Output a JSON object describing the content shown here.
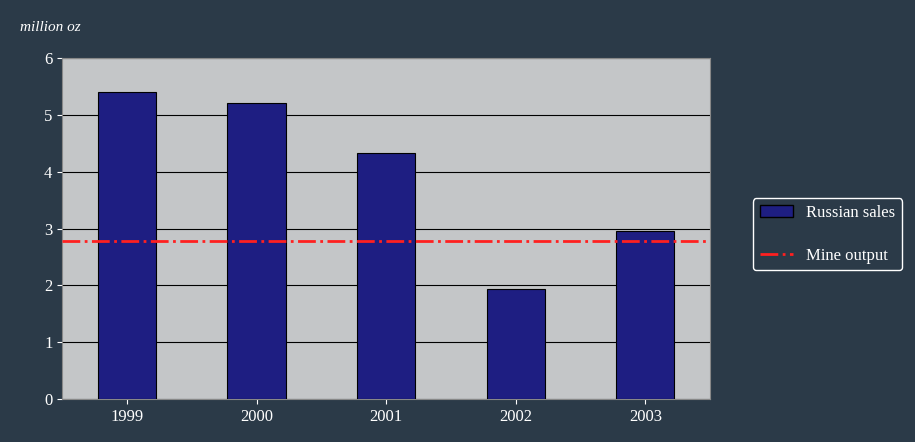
{
  "chart_data": {
    "type": "bar",
    "y_label": "million oz",
    "categories": [
      "1999",
      "2000",
      "2001",
      "2002",
      "2003"
    ],
    "series": [
      {
        "name": "Russian sales",
        "type": "bar",
        "color": "#1e1e82",
        "values": [
          5.4,
          5.2,
          4.33,
          1.93,
          2.96
        ]
      },
      {
        "name": "Mine output",
        "type": "line",
        "color": "#ff2020",
        "line_style": "dashdot",
        "values": [
          2.78,
          2.78,
          2.78,
          2.78,
          2.78
        ]
      }
    ],
    "ylim": [
      0,
      6
    ],
    "yticks": [
      0,
      1,
      2,
      3,
      4,
      5,
      6
    ],
    "grid": true,
    "legend": "right"
  }
}
